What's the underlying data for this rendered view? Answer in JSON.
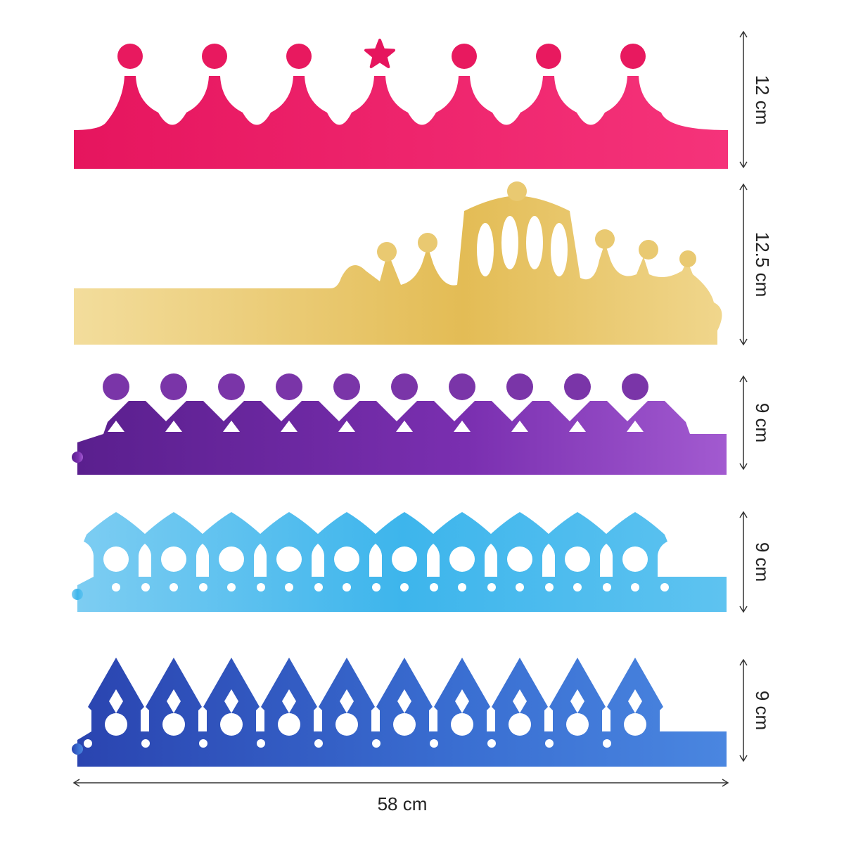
{
  "crowns": [
    {
      "height_label": "12 cm"
    },
    {
      "height_label": "12.5 cm"
    },
    {
      "height_label": "9 cm"
    },
    {
      "height_label": "9 cm"
    },
    {
      "height_label": "9 cm"
    }
  ],
  "width_label": "58 cm"
}
